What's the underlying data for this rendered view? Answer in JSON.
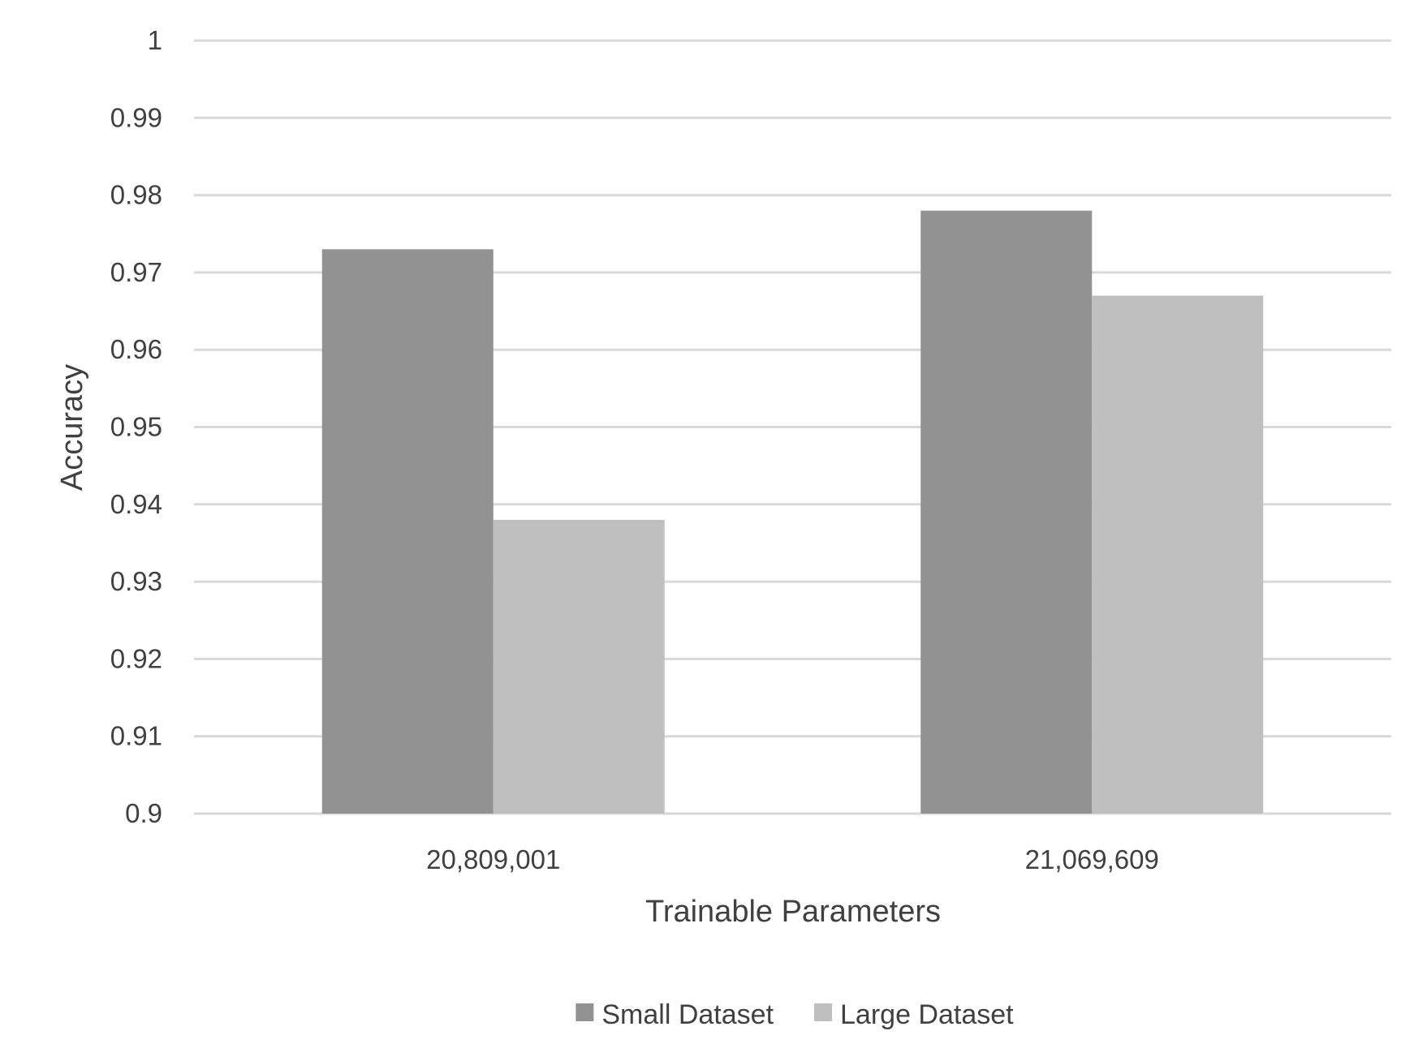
{
  "chart_data": {
    "type": "bar",
    "title": "",
    "xlabel": "Trainable Parameters",
    "ylabel": "Accuracy",
    "categories": [
      "20,809,001",
      "21,069,609"
    ],
    "series": [
      {
        "name": "Small Dataset",
        "values": [
          0.973,
          0.978
        ],
        "color": "#929292"
      },
      {
        "name": "Large Dataset",
        "values": [
          0.938,
          0.967
        ],
        "color": "#bfbfbf"
      }
    ],
    "ylim": [
      0.9,
      1
    ],
    "yticks": [
      "1",
      "0.99",
      "0.98",
      "0.97",
      "0.96",
      "0.95",
      "0.94",
      "0.93",
      "0.92",
      "0.91",
      "0.9"
    ],
    "grid": true,
    "legend_position": "bottom",
    "colors": {
      "gridline": "#d9d9d9",
      "text": "#404040"
    }
  }
}
